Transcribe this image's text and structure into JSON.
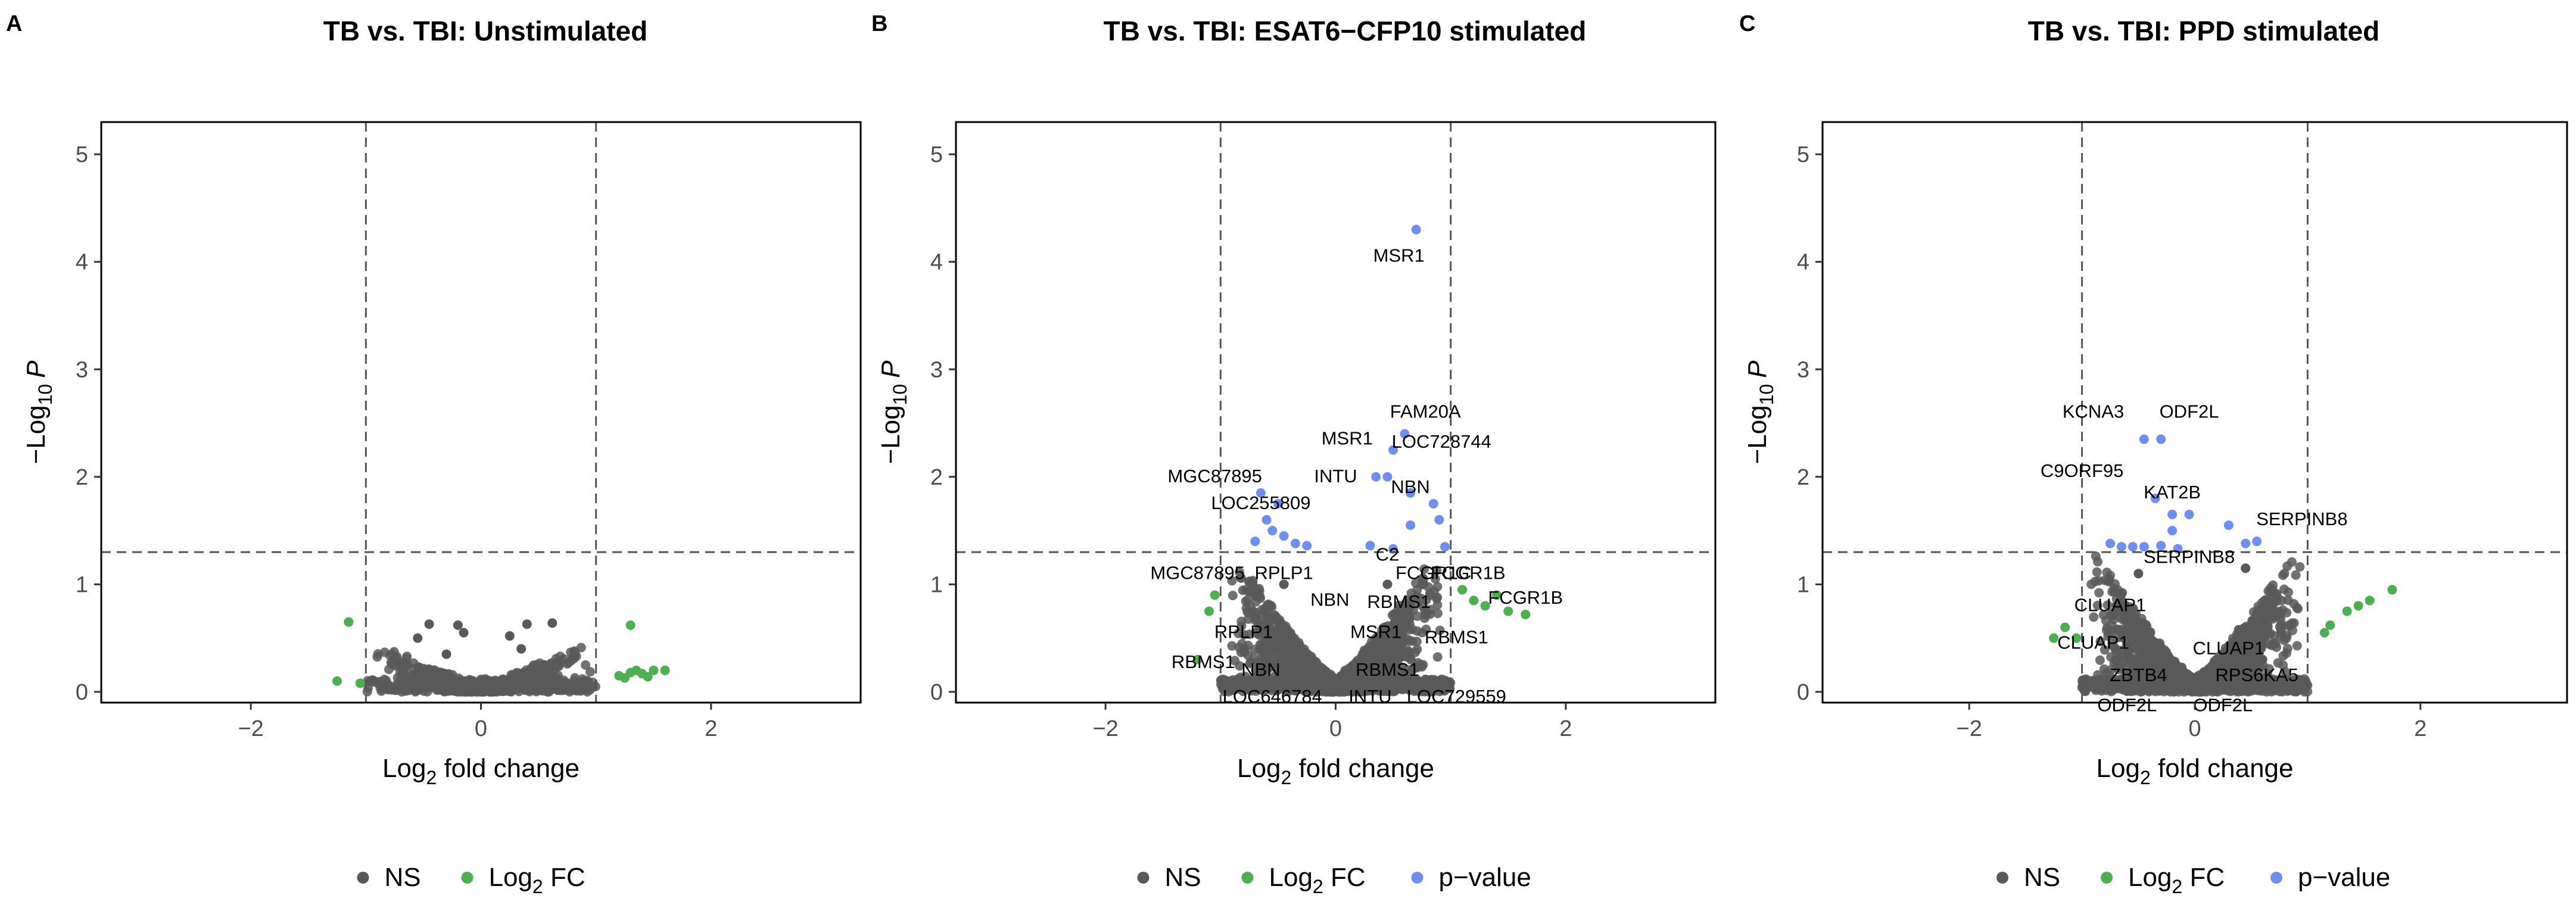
{
  "colors": {
    "ns": "#595959",
    "log2fc": "#4caf50",
    "pvalue": "#6e8ef2",
    "frame": "#000000",
    "threshold": "#555555"
  },
  "chart_data": [
    {
      "type": "scatter",
      "panel": "A",
      "title": "TB vs. TBI: Unstimulated",
      "xlabel_main": "Log",
      "xlabel_sub": "2",
      "xlabel_rest": " fold change",
      "ylabel_main": "−Log",
      "ylabel_sub": "10",
      "ylabel_p": "P",
      "xlim": [
        -3.3,
        3.3
      ],
      "ylim": [
        -0.1,
        5.3
      ],
      "xticks": [
        -2,
        0,
        2
      ],
      "xtick_labels": [
        "−2",
        "0",
        "2"
      ],
      "yticks": [
        0,
        1,
        2,
        3,
        4,
        5
      ],
      "ytick_labels": [
        "0",
        "1",
        "2",
        "3",
        "4",
        "5"
      ],
      "fc_cutoff": 1,
      "p_cutoff": 1.3,
      "ns_cloud": {
        "count": 700,
        "x_spread": 0.95,
        "base_y": 0.05,
        "max_y": 0.6,
        "curve": 0.45
      },
      "points": {
        "ns": [
          [
            -0.45,
            0.63
          ],
          [
            -0.2,
            0.62
          ],
          [
            0.4,
            0.63
          ],
          [
            0.62,
            0.64
          ],
          [
            -0.55,
            0.5
          ],
          [
            0.35,
            0.4
          ],
          [
            -0.3,
            0.35
          ],
          [
            0.8,
            0.32
          ],
          [
            -0.75,
            0.28
          ],
          [
            0.55,
            0.25
          ],
          [
            -0.15,
            0.55
          ],
          [
            0.25,
            0.52
          ]
        ],
        "log2fc": [
          [
            -1.15,
            0.65
          ],
          [
            -1.25,
            0.1
          ],
          [
            -1.05,
            0.08
          ],
          [
            1.3,
            0.62
          ],
          [
            1.2,
            0.15
          ],
          [
            1.35,
            0.2
          ],
          [
            1.5,
            0.2
          ],
          [
            1.6,
            0.2
          ],
          [
            1.3,
            0.18
          ],
          [
            1.4,
            0.17
          ],
          [
            1.45,
            0.14
          ],
          [
            1.25,
            0.13
          ]
        ],
        "pvalue": []
      },
      "labels": [],
      "legend": [
        "NS",
        "Log2 FC"
      ]
    },
    {
      "type": "scatter",
      "panel": "B",
      "title": "TB vs. TBI: ESAT6−CFP10 stimulated",
      "xlabel_main": "Log",
      "xlabel_sub": "2",
      "xlabel_rest": " fold change",
      "ylabel_main": "−Log",
      "ylabel_sub": "10",
      "ylabel_p": "P",
      "xlim": [
        -3.3,
        3.3
      ],
      "ylim": [
        -0.1,
        5.3
      ],
      "xticks": [
        -2,
        0,
        2
      ],
      "xtick_labels": [
        "−2",
        "0",
        "2"
      ],
      "yticks": [
        0,
        1,
        2,
        3,
        4,
        5
      ],
      "ytick_labels": [
        "0",
        "1",
        "2",
        "3",
        "4",
        "5"
      ],
      "fc_cutoff": 1,
      "p_cutoff": 1.3,
      "ns_cloud": {
        "count": 1500,
        "x_spread": 0.95,
        "base_y": 0.1,
        "max_y": 1.25,
        "curve": 1.4
      },
      "points": {
        "ns": [
          [
            -0.6,
            0.2
          ],
          [
            0.5,
            0.15
          ],
          [
            -0.45,
            1.0
          ],
          [
            0.45,
            1.0
          ],
          [
            -0.3,
            0.05
          ],
          [
            0.3,
            0.1
          ]
        ],
        "log2fc": [
          [
            -1.05,
            0.9
          ],
          [
            -1.1,
            0.75
          ],
          [
            -1.2,
            0.3
          ],
          [
            1.1,
            0.95
          ],
          [
            1.2,
            0.85
          ],
          [
            1.3,
            0.8
          ],
          [
            1.4,
            0.9
          ],
          [
            1.5,
            0.75
          ],
          [
            1.65,
            0.72
          ]
        ],
        "pvalue": [
          [
            0.7,
            4.3
          ],
          [
            0.6,
            2.4
          ],
          [
            0.5,
            2.25
          ],
          [
            0.45,
            2.0
          ],
          [
            0.35,
            2.0
          ],
          [
            0.65,
            1.85
          ],
          [
            0.85,
            1.75
          ],
          [
            -0.65,
            1.85
          ],
          [
            -0.5,
            1.75
          ],
          [
            -0.6,
            1.6
          ],
          [
            -0.55,
            1.5
          ],
          [
            -0.45,
            1.45
          ],
          [
            -0.35,
            1.38
          ],
          [
            -0.25,
            1.36
          ],
          [
            0.3,
            1.36
          ],
          [
            0.5,
            1.33
          ],
          [
            0.65,
            1.55
          ],
          [
            0.9,
            1.6
          ],
          [
            0.95,
            1.35
          ],
          [
            -0.7,
            1.4
          ]
        ]
      },
      "labels": [
        {
          "text": "MSR1",
          "x": 0.55,
          "y": 4.0
        },
        {
          "text": "FAM20A",
          "x": 0.78,
          "y": 2.55
        },
        {
          "text": "MSR1",
          "x": 0.1,
          "y": 2.3
        },
        {
          "text": "LOC728744",
          "x": 0.92,
          "y": 2.27
        },
        {
          "text": "MGC87895",
          "x": -1.05,
          "y": 1.95
        },
        {
          "text": "INTU",
          "x": 0.0,
          "y": 1.95
        },
        {
          "text": "NBN",
          "x": 0.65,
          "y": 1.85
        },
        {
          "text": "LOC255809",
          "x": -0.65,
          "y": 1.7
        },
        {
          "text": "FCGR1C",
          "x": 0.85,
          "y": 1.05
        },
        {
          "text": "FCGR1B",
          "x": 1.15,
          "y": 1.05
        },
        {
          "text": "MGC87895",
          "x": -1.2,
          "y": 1.05
        },
        {
          "text": "RPLP1",
          "x": -0.45,
          "y": 1.05
        },
        {
          "text": "C2",
          "x": 0.45,
          "y": 1.22
        },
        {
          "text": "NBN",
          "x": -0.05,
          "y": 0.8
        },
        {
          "text": "RBMS1",
          "x": 0.55,
          "y": 0.78
        },
        {
          "text": "FCGR1B",
          "x": 1.65,
          "y": 0.82
        },
        {
          "text": "RPLP1",
          "x": -0.8,
          "y": 0.5
        },
        {
          "text": "MSR1",
          "x": 0.35,
          "y": 0.5
        },
        {
          "text": "RBMS1",
          "x": 1.05,
          "y": 0.45
        },
        {
          "text": "RBMS1",
          "x": -1.15,
          "y": 0.22
        },
        {
          "text": "NBN",
          "x": -0.65,
          "y": 0.15
        },
        {
          "text": "RBMS1",
          "x": 0.45,
          "y": 0.15
        },
        {
          "text": "LOC646784",
          "x": -0.55,
          "y": -0.1
        },
        {
          "text": "INTU",
          "x": 0.3,
          "y": -0.1
        },
        {
          "text": "LOC729559",
          "x": 1.05,
          "y": -0.1
        }
      ],
      "legend": [
        "NS",
        "Log2 FC",
        "p−value"
      ]
    },
    {
      "type": "scatter",
      "panel": "C",
      "title": "TB vs. TBI: PPD stimulated",
      "xlabel_main": "Log",
      "xlabel_sub": "2",
      "xlabel_rest": " fold change",
      "ylabel_main": "−Log",
      "ylabel_sub": "10",
      "ylabel_p": "P",
      "xlim": [
        -3.3,
        3.3
      ],
      "ylim": [
        -0.1,
        5.3
      ],
      "xticks": [
        -2,
        0,
        2
      ],
      "xtick_labels": [
        "−2",
        "0",
        "2"
      ],
      "yticks": [
        0,
        1,
        2,
        3,
        4,
        5
      ],
      "ytick_labels": [
        "0",
        "1",
        "2",
        "3",
        "4",
        "5"
      ],
      "fc_cutoff": 1,
      "p_cutoff": 1.3,
      "ns_cloud": {
        "count": 1500,
        "x_spread": 0.95,
        "base_y": 0.1,
        "max_y": 1.25,
        "curve": 1.4
      },
      "points": {
        "ns": [
          [
            -0.7,
            0.3
          ],
          [
            0.6,
            0.3
          ],
          [
            -0.5,
            1.1
          ],
          [
            0.45,
            1.15
          ]
        ],
        "log2fc": [
          [
            -1.05,
            0.5
          ],
          [
            -1.15,
            0.6
          ],
          [
            -1.25,
            0.5
          ],
          [
            1.15,
            0.55
          ],
          [
            1.2,
            0.62
          ],
          [
            1.35,
            0.75
          ],
          [
            1.45,
            0.8
          ],
          [
            1.55,
            0.85
          ],
          [
            1.75,
            0.95
          ]
        ],
        "pvalue": [
          [
            -0.45,
            2.35
          ],
          [
            -0.3,
            2.35
          ],
          [
            -0.35,
            1.8
          ],
          [
            -0.2,
            1.65
          ],
          [
            -0.05,
            1.65
          ],
          [
            0.3,
            1.55
          ],
          [
            0.55,
            1.4
          ],
          [
            0.45,
            1.38
          ],
          [
            -0.65,
            1.35
          ],
          [
            -0.55,
            1.35
          ],
          [
            -0.45,
            1.35
          ],
          [
            -0.3,
            1.36
          ],
          [
            -0.15,
            1.33
          ],
          [
            -0.75,
            1.38
          ],
          [
            -0.2,
            1.5
          ]
        ]
      },
      "labels": [
        {
          "text": "KCNA3",
          "x": -0.9,
          "y": 2.55
        },
        {
          "text": "ODF2L",
          "x": -0.05,
          "y": 2.55
        },
        {
          "text": "C9ORF95",
          "x": -1.0,
          "y": 2.0
        },
        {
          "text": "KAT2B",
          "x": -0.2,
          "y": 1.8
        },
        {
          "text": "SERPINB8",
          "x": 0.95,
          "y": 1.55
        },
        {
          "text": "SERPINB8",
          "x": -0.05,
          "y": 1.2
        },
        {
          "text": "CLUAP1",
          "x": -0.75,
          "y": 0.75
        },
        {
          "text": "CLUAP1",
          "x": -0.9,
          "y": 0.4
        },
        {
          "text": "CLUAP1",
          "x": 0.3,
          "y": 0.35
        },
        {
          "text": "ZBTB4",
          "x": -0.5,
          "y": 0.1
        },
        {
          "text": "RPS6KA5",
          "x": 0.55,
          "y": 0.1
        },
        {
          "text": "ODF2L",
          "x": -0.6,
          "y": -0.18
        },
        {
          "text": "ODF2L",
          "x": 0.25,
          "y": -0.18
        }
      ],
      "legend": [
        "NS",
        "Log2 FC",
        "p−value"
      ]
    }
  ]
}
